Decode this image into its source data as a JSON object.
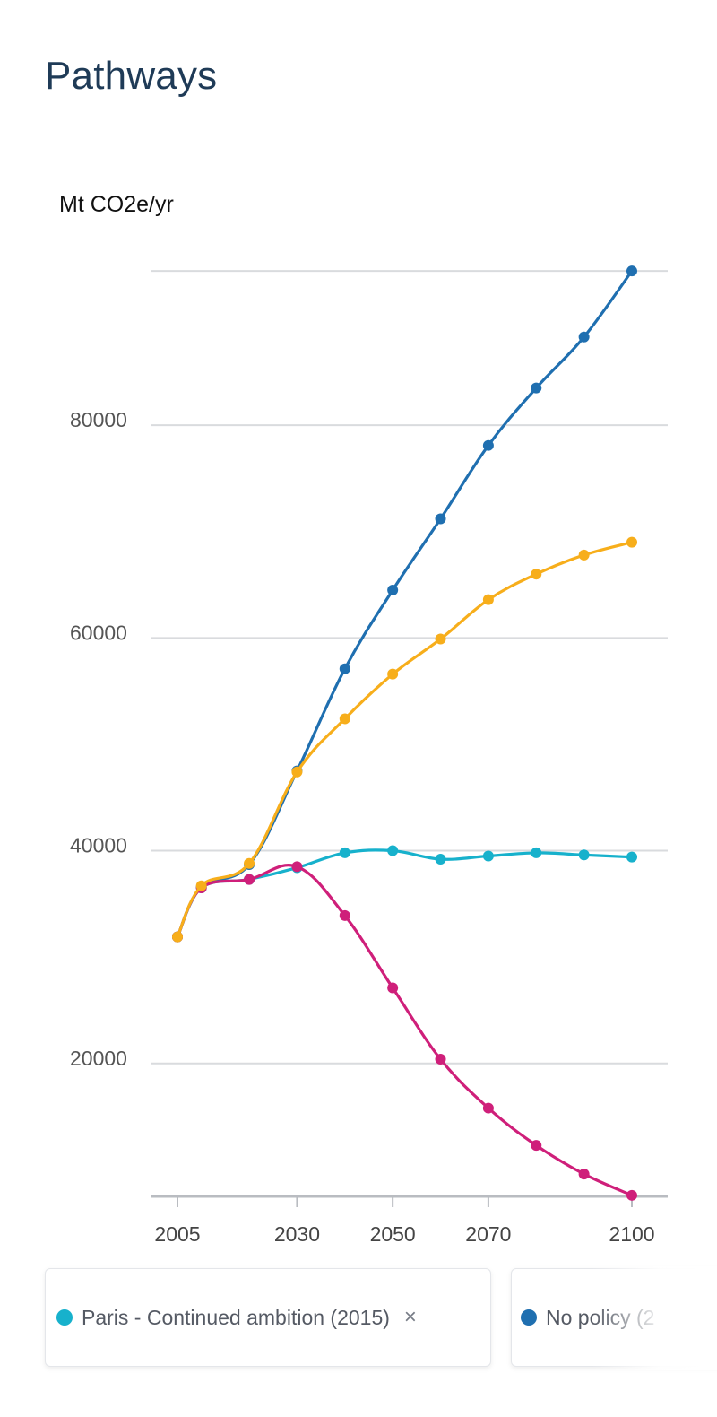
{
  "page": {
    "title": "Pathways"
  },
  "chart_data": {
    "type": "line",
    "ylabel": "Mt CO2e/yr",
    "xlabel": "",
    "x_tick_labels": [
      "2005",
      "2030",
      "2050",
      "2070",
      "2100"
    ],
    "y_tick_labels": [
      "20000",
      "40000",
      "60000",
      "80000"
    ],
    "ylim": [
      7500,
      94600
    ],
    "xlim": [
      2005,
      2100
    ],
    "grid": true,
    "x": [
      2005,
      2010,
      2020,
      2030,
      2040,
      2050,
      2060,
      2070,
      2080,
      2090,
      2100
    ],
    "series": [
      {
        "name": "Paris - Continued ambition (2015)",
        "color": "#17b1cc",
        "values": [
          31900,
          36500,
          37300,
          38400,
          39800,
          40000,
          39200,
          39500,
          39800,
          39600,
          39400
        ]
      },
      {
        "name": "No policy (2",
        "color": "#1f6fb0",
        "values": [
          31900,
          36600,
          38700,
          47500,
          57100,
          64500,
          71200,
          78100,
          83500,
          88300,
          94500
        ]
      },
      {
        "color": "#f7ae1b",
        "values": [
          31900,
          36700,
          38800,
          47400,
          52400,
          56600,
          59900,
          63600,
          66000,
          67800,
          69000
        ]
      },
      {
        "color": "#cf1f7a",
        "values": [
          31900,
          36500,
          37300,
          38500,
          33900,
          27100,
          20400,
          15800,
          12300,
          9600,
          7600
        ]
      }
    ]
  },
  "legend": {
    "items": [
      {
        "label": "Paris - Continued ambition (2015)",
        "color": "#17b1cc",
        "close_glyph": "×"
      },
      {
        "label": "No policy (2",
        "color": "#1f6fb0"
      }
    ]
  }
}
